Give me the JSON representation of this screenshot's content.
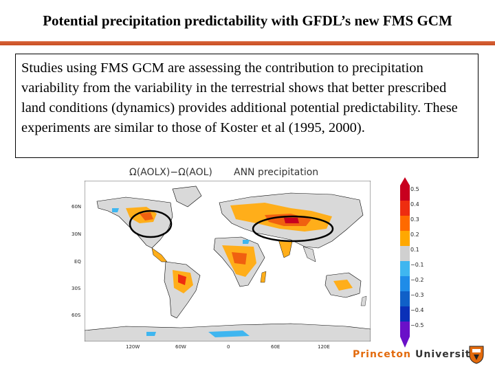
{
  "slide": {
    "title": "Potential precipitation predictability with GFDL’s new FMS GCM",
    "body": "Studies using FMS GCM are assessing the contribution to precipitation variability from the variability in the terrestrial shows that better prescribed land conditions (dynamics) provides additional potential predictability.  These experiments are similar to those of Koster et al (1995, 2000)."
  },
  "figure": {
    "title": "Ω(AOLX)−Ω(AOL)",
    "subtitle": "ANN  precipitation",
    "lat_labels": [
      "60N",
      "30N",
      "EQ",
      "30S",
      "60S"
    ],
    "lon_labels": [
      "120W",
      "60W",
      "0",
      "60E",
      "120E"
    ],
    "colorbar": {
      "labels": [
        "0.5",
        "0.4",
        "0.3",
        "0.2",
        "0.1",
        "−0.1",
        "−0.2",
        "−0.3",
        "−0.4",
        "−0.5"
      ],
      "colors": [
        "#c8001e",
        "#ee2d10",
        "#ff6a00",
        "#ffa800",
        "#d0d0d0",
        "#3fb6f0",
        "#1f8ce8",
        "#1060c8",
        "#0a30b8",
        "#6a10c8"
      ]
    }
  },
  "footer": {
    "princeton": "Princeton",
    "university": "University"
  }
}
